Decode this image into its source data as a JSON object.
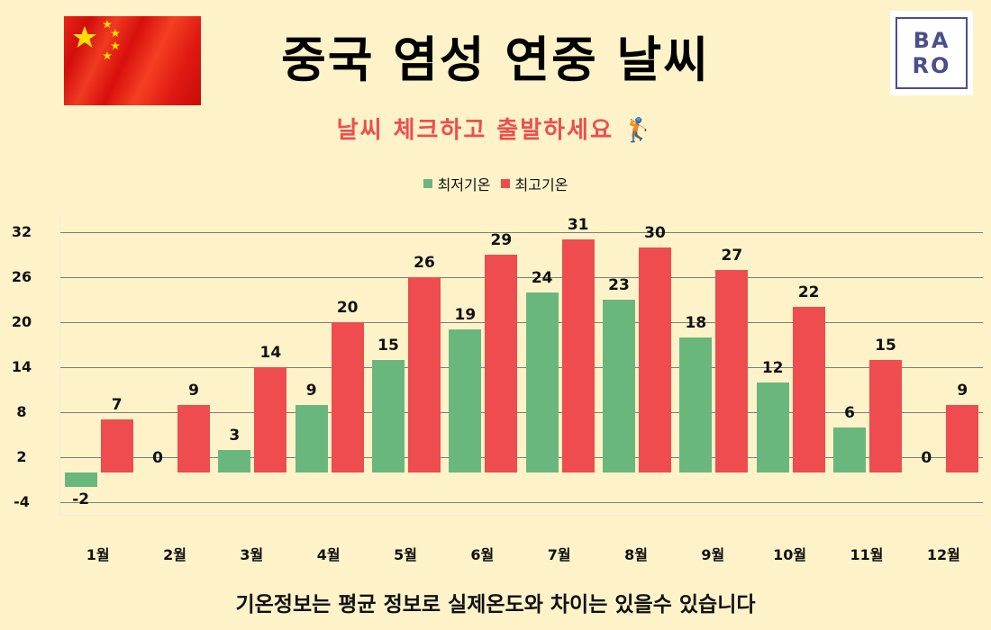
{
  "header": {
    "title": "중국 염성 연중 날씨",
    "subtitle": "날씨 체크하고 출발하세요 🏌",
    "flag_icon": "china-flag-icon",
    "logo": {
      "line1": "BA",
      "line2": "RO",
      "border_color": "#4a4e8c"
    }
  },
  "legend": {
    "items": [
      {
        "label": "최저기온",
        "color": "#6ab77e"
      },
      {
        "label": "최고기온",
        "color": "#ee4c4f"
      }
    ]
  },
  "footer": {
    "note": "기온정보는 평균 정보로 실제온도와 차이는 있을수 있습니다"
  },
  "colors": {
    "background": "#fef3c8",
    "low": "#6ab77e",
    "high": "#ee4c4f",
    "title": "#000000",
    "subtitle": "#ee4e4e"
  },
  "chart_data": {
    "type": "bar",
    "title": "중국 염성 연중 날씨",
    "xlabel": "",
    "ylabel": "",
    "categories": [
      "1월",
      "2월",
      "3월",
      "4월",
      "5월",
      "6월",
      "7월",
      "8월",
      "9월",
      "10월",
      "11월",
      "12월"
    ],
    "series": [
      {
        "name": "최저기온",
        "color": "#6ab77e",
        "values": [
          -2,
          0,
          3,
          9,
          15,
          19,
          24,
          23,
          18,
          12,
          6,
          0
        ]
      },
      {
        "name": "최고기온",
        "color": "#ee4c4f",
        "values": [
          7,
          9,
          14,
          20,
          26,
          29,
          31,
          30,
          27,
          22,
          15,
          9
        ]
      }
    ],
    "yticks": [
      32,
      26,
      20,
      14,
      8,
      2,
      -4
    ],
    "ylim": [
      -5.7,
      34.4
    ],
    "grid": true,
    "legend_position": "top",
    "data_labels": true
  }
}
